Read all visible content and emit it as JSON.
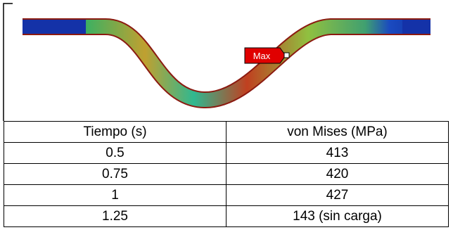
{
  "image": {
    "label": "Max"
  },
  "table": {
    "header": [
      "Tiempo (s)",
      "von Mises (MPa)"
    ],
    "rows": [
      [
        "0.5",
        "413"
      ],
      [
        "0.75",
        "420"
      ],
      [
        "1",
        "427"
      ],
      [
        "1.25",
        "143 (sin carga)"
      ]
    ]
  }
}
